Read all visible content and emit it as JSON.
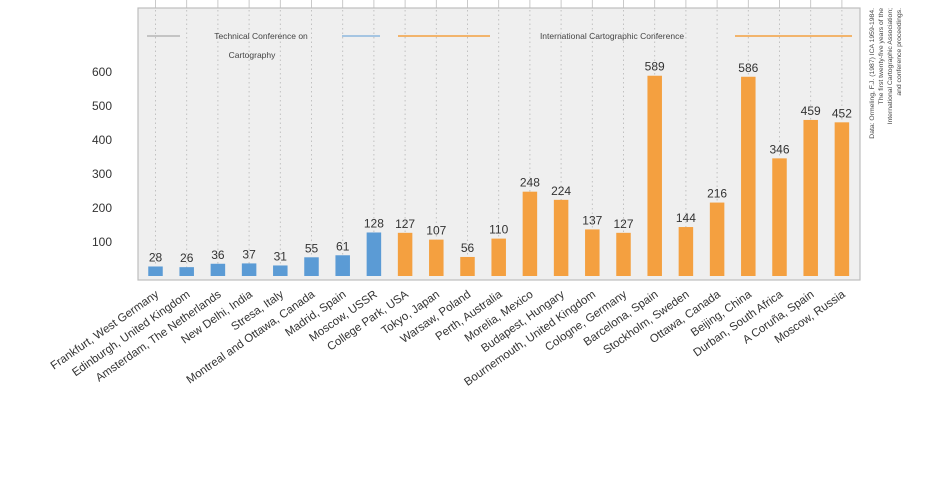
{
  "chart_data": {
    "type": "bar",
    "categories": [
      "Frankfurt, West Germany",
      "Edinburgh, United Kingdom",
      "Amsterdam, The Netherlands",
      "New Delhi, India",
      "Stresa, Italy",
      "Montreal and Ottawa, Canada",
      "Madrid, Spain",
      "Moscow, USSR",
      "College Park, USA",
      "Tokyo, Japan",
      "Warsaw, Poland",
      "Perth, Australia",
      "Morelia, Mexico",
      "Budapest, Hungary",
      "Bournemouth, United Kingdom",
      "Cologne, Germany",
      "Barcelona, Spain",
      "Stockholm, Sweden",
      "Ottawa, Canada",
      "Beijing, China",
      "Durban, South Africa",
      "A Coruña, Spain",
      "Moscow, Russia"
    ],
    "values": [
      28,
      26,
      36,
      37,
      31,
      55,
      61,
      128,
      127,
      107,
      56,
      110,
      248,
      224,
      137,
      127,
      589,
      144,
      216,
      586,
      346,
      459,
      452
    ],
    "series_groups": [
      {
        "name": "Technical Conference on Cartography",
        "color": "#5b9bd5",
        "range": [
          0,
          7
        ]
      },
      {
        "name": "International Cartographic Conference",
        "color": "#f4a040",
        "range": [
          8,
          22
        ]
      }
    ],
    "legend": {
      "technical_line1": "Technical Conference on",
      "technical_line2": "Cartography",
      "international": "International Cartographic Conference"
    },
    "yticks": [
      100,
      200,
      300,
      400,
      500,
      600
    ],
    "ylim": [
      0,
      700
    ],
    "grid": "vertical dotted",
    "source_lines": [
      "Data: Ormeling, F.J. (1987) ICA 1959-1984.",
      "The first twenty-five years of the",
      "International Cartographic Association;",
      "and conference proceedings."
    ],
    "colors": {
      "technical": "#5b9bd5",
      "international": "#f4a040",
      "plot_background": "#efefef",
      "frame": "#bdbdbd",
      "grid": "#bcbcbc"
    }
  }
}
